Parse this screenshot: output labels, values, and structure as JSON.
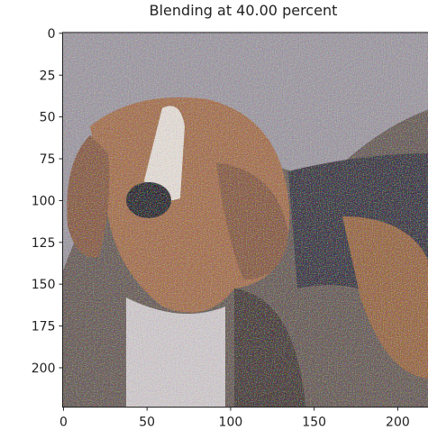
{
  "chart_data": {
    "type": "image",
    "title": "Blending at 40.00 percent",
    "xlim": [
      -0.5,
      223.5
    ],
    "ylim": [
      223.5,
      -0.5
    ],
    "xticks": [
      0,
      50,
      100,
      150,
      200
    ],
    "yticks": [
      0,
      25,
      50,
      75,
      100,
      125,
      150,
      175,
      200
    ]
  }
}
